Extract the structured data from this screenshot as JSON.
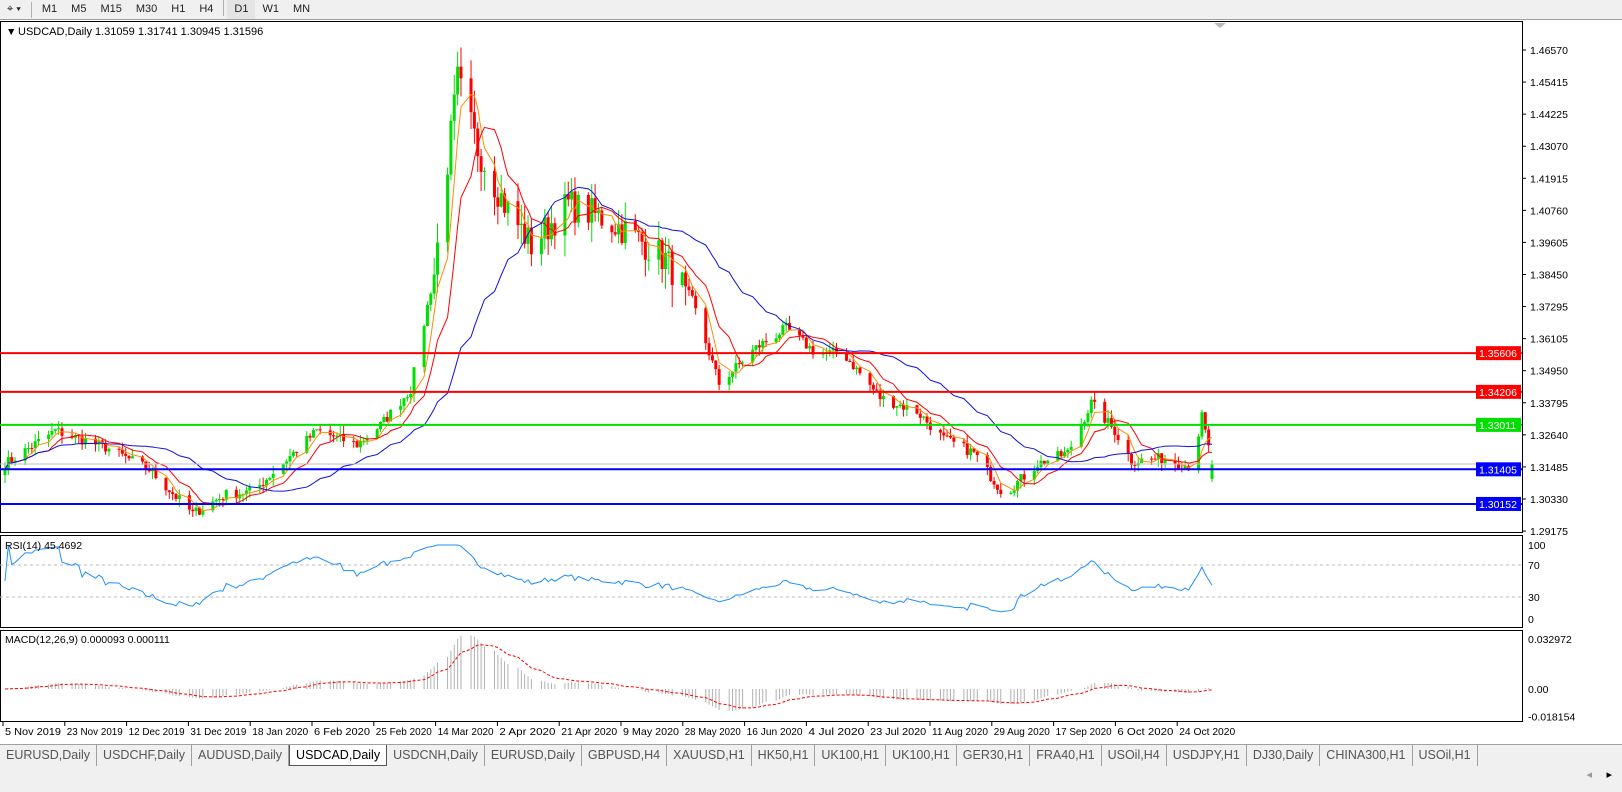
{
  "toolbar": {
    "timeframes": [
      "M1",
      "M5",
      "M15",
      "M30",
      "H1",
      "H4",
      "D1",
      "W1",
      "MN"
    ],
    "active": "D1"
  },
  "chart": {
    "header": "USDCAD,Daily  1.31059 1.31741 1.30945 1.31596",
    "price_ticks": [
      "1.46570",
      "1.45415",
      "1.44225",
      "1.43070",
      "1.41915",
      "1.40760",
      "1.39605",
      "1.38450",
      "1.37295",
      "1.36105",
      "1.34950",
      "1.33795",
      "1.32640",
      "1.31485",
      "1.30330",
      "1.29175"
    ],
    "levels": [
      {
        "label": "1.35606",
        "color": "#ff0000"
      },
      {
        "label": "1.34206",
        "color": "#ff0000"
      },
      {
        "label": "1.33011",
        "color": "#00e000"
      },
      {
        "label": "1.31405",
        "color": "#0000ff"
      },
      {
        "label": "1.30152",
        "color": "#0000ff"
      }
    ],
    "bull_color": "#00e000",
    "bear_color": "#ff0000",
    "ma_colors": [
      "#ff8c00",
      "#ff0000",
      "#1010e0"
    ],
    "date_labels": [
      "5 Nov 2019",
      "23 Nov 2019",
      "12 Dec 2019",
      "31 Dec 2019",
      "18 Jan 2020",
      "6 Feb 2020",
      "25 Feb 2020",
      "14 Mar 2020",
      "2 Apr 2020",
      "21 Apr 2020",
      "9 May 2020",
      "28 May 2020",
      "16 Jun 2020",
      "4 Jul 2020",
      "23 Jul 2020",
      "11 Aug 2020",
      "29 Aug 2020",
      "17 Sep 2020",
      "6 Oct 2020",
      "24 Oct 2020"
    ]
  },
  "chart_data": {
    "type": "candlestick",
    "approx_closes": [
      [
        "2019-11-05",
        1.316
      ],
      [
        "2019-11-20",
        1.328
      ],
      [
        "2019-12-05",
        1.322
      ],
      [
        "2019-12-18",
        1.314
      ],
      [
        "2019-12-31",
        1.298
      ],
      [
        "2020-01-10",
        1.305
      ],
      [
        "2020-01-18",
        1.306
      ],
      [
        "2020-02-06",
        1.328
      ],
      [
        "2020-02-18",
        1.323
      ],
      [
        "2020-02-25",
        1.33
      ],
      [
        "2020-03-05",
        1.343
      ],
      [
        "2020-03-12",
        1.385
      ],
      [
        "2020-03-19",
        1.455
      ],
      [
        "2020-03-25",
        1.43
      ],
      [
        "2020-04-02",
        1.41
      ],
      [
        "2020-04-10",
        1.395
      ],
      [
        "2020-04-21",
        1.41
      ],
      [
        "2020-05-01",
        1.405
      ],
      [
        "2020-05-09",
        1.4
      ],
      [
        "2020-05-20",
        1.39
      ],
      [
        "2020-05-28",
        1.375
      ],
      [
        "2020-06-05",
        1.345
      ],
      [
        "2020-06-16",
        1.358
      ],
      [
        "2020-06-25",
        1.365
      ],
      [
        "2020-07-04",
        1.356
      ],
      [
        "2020-07-12",
        1.356
      ],
      [
        "2020-07-23",
        1.34
      ],
      [
        "2020-08-03",
        1.335
      ],
      [
        "2020-08-11",
        1.325
      ],
      [
        "2020-08-20",
        1.32
      ],
      [
        "2020-08-29",
        1.305
      ],
      [
        "2020-09-08",
        1.316
      ],
      [
        "2020-09-17",
        1.32
      ],
      [
        "2020-09-24",
        1.338
      ],
      [
        "2020-10-01",
        1.328
      ],
      [
        "2020-10-06",
        1.317
      ],
      [
        "2020-10-15",
        1.318
      ],
      [
        "2020-10-24",
        1.315
      ],
      [
        "2020-10-27",
        1.333
      ],
      [
        "2020-10-30",
        1.316
      ]
    ]
  },
  "rsi": {
    "label": "RSI(14) 45.4692",
    "ticks": [
      "100",
      "70",
      "30",
      "0"
    ]
  },
  "macd": {
    "label": "MACD(12,26,9) 0.000093 0.000111",
    "ticks": [
      "0.032972",
      "0.00",
      "-0.018154"
    ]
  },
  "tabs": [
    "EURUSD,Daily",
    "USDCHF,Daily",
    "AUDUSD,Daily",
    "USDCAD,Daily",
    "USDCNH,Daily",
    "EURUSD,Daily",
    "GBPUSD,H4",
    "XAUUSD,H1",
    "HK50,H1",
    "UK100,H1",
    "UK100,H1",
    "GER30,H1",
    "FRA40,H1",
    "USOil,H4",
    "USDJPY,H1",
    "DJ30,Daily",
    "CHINA300,H1",
    "USOil,H1"
  ],
  "active_tab": "USDCAD,Daily"
}
